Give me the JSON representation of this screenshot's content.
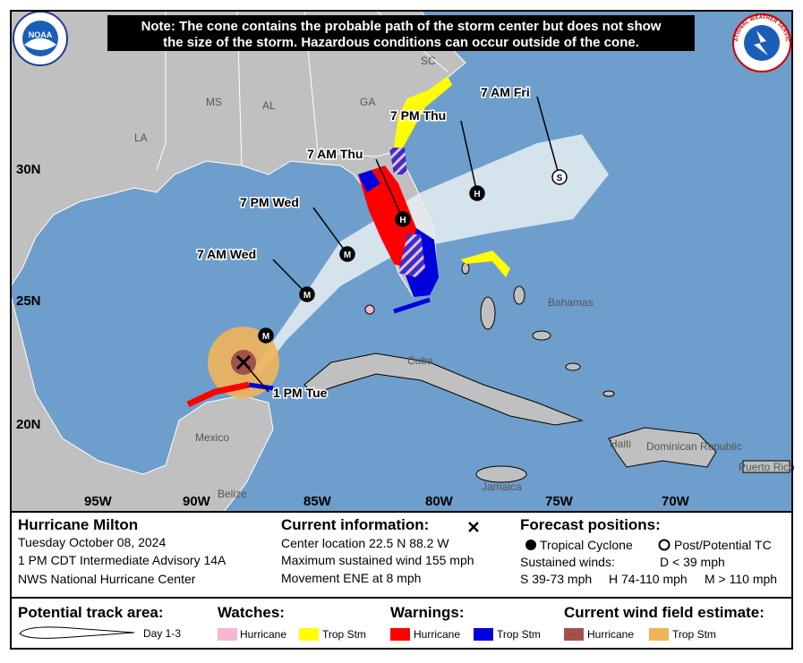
{
  "note": {
    "lines": [
      "Note: The cone contains the probable path of the storm center but does not show",
      "the size of the storm. Hazardous conditions can occur outside of the cone."
    ]
  },
  "logos": {
    "left": "NOAA",
    "right": "NATIONAL WEATHER SERVICE"
  },
  "map": {
    "state_labels": [
      "SC",
      "GA",
      "MS",
      "AL",
      "LA"
    ],
    "latitude_labels": [
      "30N",
      "25N",
      "20N"
    ],
    "longitude_labels": [
      "95W",
      "90W",
      "85W",
      "80W",
      "75W",
      "70W"
    ],
    "place_labels": [
      "Mexico",
      "Belize",
      "Cuba",
      "Bahamas",
      "Jamaica",
      "Haiti",
      "Dominican Republic",
      "Puerto Rico"
    ],
    "forecast_points": [
      {
        "time": "7 AM Fri",
        "marker": "S"
      },
      {
        "time": "7 PM Thu",
        "marker": "H"
      },
      {
        "time": "7 AM Thu",
        "marker": "H"
      },
      {
        "time": "7 PM Wed",
        "marker": "M"
      },
      {
        "time": "7 AM Wed",
        "marker": "M"
      },
      {
        "marker": "M"
      }
    ],
    "current_time": "1 PM Tue"
  },
  "info": {
    "storm": {
      "name": "Hurricane Milton",
      "date": "Tuesday October 08, 2024",
      "advisory": "1 PM CDT Intermediate Advisory 14A",
      "center": "NWS National Hurricane Center"
    },
    "current": {
      "title": "Current information:",
      "location": "Center location 22.5 N 88.2 W",
      "wind": "Maximum sustained wind 155 mph",
      "movement": "Movement ENE at 8 mph"
    },
    "forecast": {
      "title": "Forecast positions:",
      "tropical": "Tropical Cyclone",
      "post": "Post/Potential TC",
      "winds_title": "Sustained winds:",
      "d": "D < 39 mph",
      "s": "S 39-73 mph",
      "h": "H 74-110 mph",
      "m": "M > 110 mph"
    }
  },
  "legend": {
    "track": {
      "title": "Potential track area:",
      "day": "Day 1-3"
    },
    "watches": {
      "title": "Watches:",
      "hurricane": "Hurricane",
      "trop": "Trop Stm"
    },
    "warnings": {
      "title": "Warnings:",
      "hurricane": "Hurricane",
      "trop": "Trop Stm"
    },
    "wind": {
      "title": "Current wind field estimate:",
      "hurricane": "Hurricane",
      "trop": "Trop Stm"
    }
  }
}
